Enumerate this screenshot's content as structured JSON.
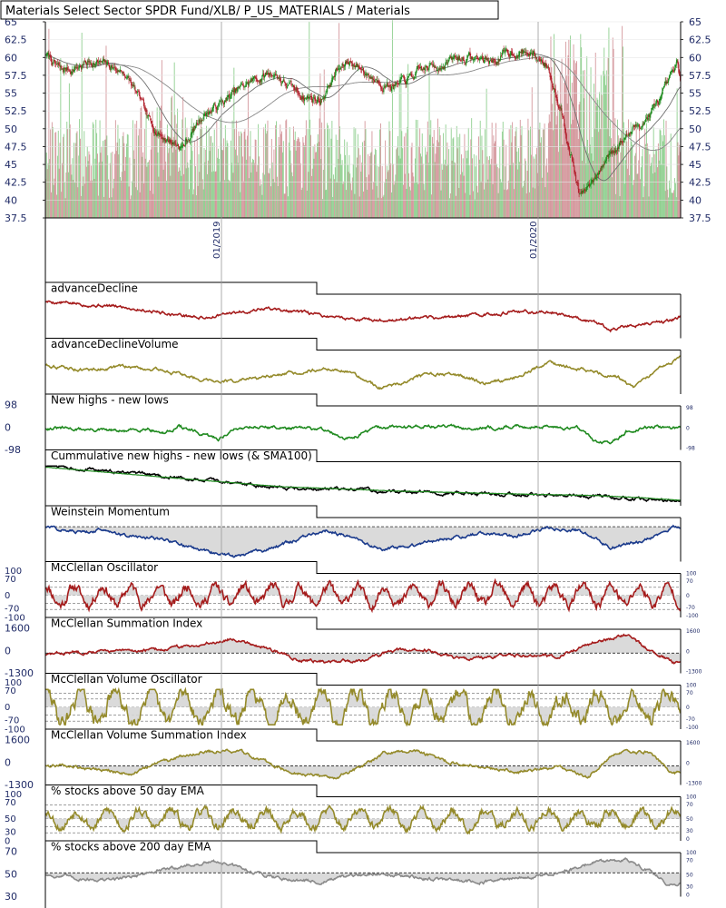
{
  "title": "Materials Select Sector SPDR Fund/XLB/ P_US_MATERIALS / Materials",
  "colors": {
    "up": "#1b8a1b",
    "down": "#b01e2a",
    "up_volume": "#8fcf8f",
    "down_volume": "#d4979c",
    "red_line": "#a51c1c",
    "olive_line": "#948a2a",
    "green_line": "#1f8a1f",
    "navy_line": "#1a3a8c",
    "gray_line": "#8a8a8a",
    "fill": "#d6d6d6",
    "frame": "#000000",
    "axis_text": "#1f2a66"
  },
  "chart_data": [
    {
      "id": "price",
      "type": "candlestick",
      "title": "Materials Select Sector SPDR Fund/XLB/ P_US_MATERIALS / Materials",
      "ylim": [
        37.5,
        65
      ],
      "yticks": [
        37.5,
        40,
        42.5,
        45,
        47.5,
        50,
        52.5,
        55,
        57.5,
        60,
        62.5,
        65
      ],
      "ytick_labels": [
        "37.5",
        "40",
        "42.5",
        "45",
        "47.5",
        "50",
        "52.5",
        "55",
        "57.5",
        "60",
        "62.5",
        "65"
      ],
      "x_date_labels": [
        "01/2019",
        "01/2020"
      ],
      "approx_close_anchors": [
        [
          0,
          60.5
        ],
        [
          20,
          58
        ],
        [
          60,
          59.5
        ],
        [
          100,
          58
        ],
        [
          120,
          54
        ],
        [
          130,
          51
        ],
        [
          150,
          49
        ],
        [
          175,
          47.5
        ],
        [
          200,
          52
        ],
        [
          230,
          54
        ],
        [
          260,
          56.5
        ],
        [
          290,
          58
        ],
        [
          320,
          55
        ],
        [
          350,
          54
        ],
        [
          370,
          58
        ],
        [
          390,
          59.5
        ],
        [
          420,
          57
        ],
        [
          450,
          56
        ],
        [
          480,
          58
        ],
        [
          510,
          59.5
        ],
        [
          540,
          60
        ],
        [
          570,
          59.5
        ],
        [
          600,
          61
        ],
        [
          620,
          60.5
        ],
        [
          640,
          59
        ],
        [
          660,
          52
        ],
        [
          680,
          41
        ],
        [
          700,
          42.5
        ],
        [
          720,
          47
        ],
        [
          745,
          49.5
        ],
        [
          770,
          52
        ],
        [
          790,
          55
        ],
        [
          805,
          58.5
        ],
        [
          810,
          56
        ]
      ]
    },
    {
      "id": "advance-decline",
      "type": "line",
      "title": "advanceDecline",
      "series": [
        {
          "color": "red_line",
          "anchors": [
            [
              0,
              0.9
            ],
            [
              100,
              0.75
            ],
            [
              200,
              0.45
            ],
            [
              280,
              0.72
            ],
            [
              360,
              0.5
            ],
            [
              420,
              0.38
            ],
            [
              500,
              0.45
            ],
            [
              600,
              0.62
            ],
            [
              650,
              0.6
            ],
            [
              700,
              0.35
            ],
            [
              720,
              0.15
            ],
            [
              760,
              0.3
            ],
            [
              790,
              0.35
            ],
            [
              810,
              0.5
            ]
          ]
        }
      ]
    },
    {
      "id": "advance-decline-volume",
      "type": "line",
      "title": "advanceDeclineVolume",
      "series": [
        {
          "color": "olive_line",
          "anchors": [
            [
              0,
              0.7
            ],
            [
              50,
              0.55
            ],
            [
              100,
              0.65
            ],
            [
              150,
              0.55
            ],
            [
              200,
              0.3
            ],
            [
              240,
              0.25
            ],
            [
              300,
              0.4
            ],
            [
              350,
              0.6
            ],
            [
              380,
              0.55
            ],
            [
              400,
              0.35
            ],
            [
              430,
              0.05
            ],
            [
              480,
              0.4
            ],
            [
              520,
              0.45
            ],
            [
              560,
              0.2
            ],
            [
              600,
              0.35
            ],
            [
              640,
              0.75
            ],
            [
              680,
              0.6
            ],
            [
              730,
              0.35
            ],
            [
              750,
              0.05
            ],
            [
              780,
              0.55
            ],
            [
              810,
              0.9
            ]
          ]
        }
      ]
    },
    {
      "id": "new-highs-lows",
      "type": "line",
      "title": "New highs - new lows",
      "left_labels": [
        "98",
        "0",
        "-98"
      ],
      "right_labels": [
        "98",
        "0",
        "-98"
      ],
      "series": [
        {
          "color": "green_line",
          "anchors": [
            [
              0,
              0.5
            ],
            [
              60,
              0.45
            ],
            [
              100,
              0.4
            ],
            [
              130,
              0.5
            ],
            [
              150,
              0.35
            ],
            [
              170,
              0.55
            ],
            [
              200,
              0.3
            ],
            [
              220,
              0.2
            ],
            [
              240,
              0.45
            ],
            [
              260,
              0.55
            ],
            [
              300,
              0.5
            ],
            [
              360,
              0.45
            ],
            [
              380,
              0.15
            ],
            [
              420,
              0.5
            ],
            [
              480,
              0.55
            ],
            [
              560,
              0.5
            ],
            [
              620,
              0.55
            ],
            [
              680,
              0.5
            ],
            [
              700,
              0.15
            ],
            [
              720,
              0.05
            ],
            [
              740,
              0.4
            ],
            [
              780,
              0.55
            ],
            [
              810,
              0.5
            ]
          ]
        }
      ]
    },
    {
      "id": "cumulative-new-highs-lows",
      "type": "line",
      "title": "Cummulative new highs - new lows (& SMA100)",
      "series": [
        {
          "color": "frame",
          "anchors": [
            [
              0,
              1.0
            ],
            [
              150,
              0.7
            ],
            [
              300,
              0.4
            ],
            [
              450,
              0.28
            ],
            [
              600,
              0.2
            ],
            [
              700,
              0.15
            ],
            [
              760,
              0.08
            ],
            [
              810,
              0.02
            ]
          ]
        },
        {
          "color": "green_line",
          "anchors": [
            [
              0,
              0.95
            ],
            [
              150,
              0.68
            ],
            [
              300,
              0.42
            ],
            [
              450,
              0.3
            ],
            [
              600,
              0.22
            ],
            [
              700,
              0.18
            ],
            [
              760,
              0.12
            ],
            [
              810,
              0.05
            ]
          ]
        }
      ]
    },
    {
      "id": "weinstein-momentum",
      "type": "area",
      "title": "Weinstein Momentum",
      "baseline": 0.85,
      "series": [
        {
          "color": "navy_line",
          "anchors": [
            [
              0,
              0.85
            ],
            [
              40,
              0.7
            ],
            [
              80,
              0.8
            ],
            [
              100,
              0.6
            ],
            [
              150,
              0.5
            ],
            [
              200,
              0.2
            ],
            [
              240,
              0.05
            ],
            [
              280,
              0.2
            ],
            [
              320,
              0.5
            ],
            [
              360,
              0.75
            ],
            [
              390,
              0.55
            ],
            [
              430,
              0.25
            ],
            [
              470,
              0.35
            ],
            [
              520,
              0.55
            ],
            [
              560,
              0.7
            ],
            [
              600,
              0.6
            ],
            [
              640,
              0.8
            ],
            [
              680,
              0.75
            ],
            [
              720,
              0.3
            ],
            [
              760,
              0.45
            ],
            [
              800,
              0.85
            ],
            [
              810,
              0.8
            ]
          ]
        }
      ]
    },
    {
      "id": "mcclellan-oscillator",
      "type": "oscillator",
      "title": "McClellan Oscillator",
      "left_labels": [
        "100",
        "70",
        "0",
        "-70",
        "-100"
      ],
      "right_labels": [
        "100",
        "70",
        "0",
        "-70",
        "-100"
      ],
      "series": [
        {
          "color": "red_line",
          "seed": 11,
          "amp": 0.55,
          "period": 18
        }
      ]
    },
    {
      "id": "mcclellan-summation",
      "type": "area",
      "title": "McClellan Summation Index",
      "left_labels": [
        "1600",
        "0",
        "-1300"
      ],
      "right_labels": [
        "1600",
        "0",
        "-1300"
      ],
      "baseline": 0.45,
      "series": [
        {
          "color": "red_line",
          "anchors": [
            [
              0,
              0.4
            ],
            [
              50,
              0.5
            ],
            [
              100,
              0.5
            ],
            [
              150,
              0.55
            ],
            [
              200,
              0.7
            ],
            [
              240,
              0.85
            ],
            [
              280,
              0.6
            ],
            [
              320,
              0.3
            ],
            [
              360,
              0.2
            ],
            [
              400,
              0.25
            ],
            [
              440,
              0.5
            ],
            [
              480,
              0.55
            ],
            [
              520,
              0.35
            ],
            [
              560,
              0.3
            ],
            [
              600,
              0.4
            ],
            [
              650,
              0.35
            ],
            [
              700,
              0.75
            ],
            [
              740,
              0.95
            ],
            [
              770,
              0.5
            ],
            [
              800,
              0.2
            ],
            [
              810,
              0.15
            ]
          ]
        }
      ]
    },
    {
      "id": "mcclellan-volume-oscillator",
      "type": "oscillator",
      "title": "McClellan Volume Oscillator",
      "left_labels": [
        "100",
        "70",
        "0",
        "-70",
        "-100"
      ],
      "right_labels": [
        "100",
        "70",
        "0",
        "-70",
        "-100"
      ],
      "series": [
        {
          "color": "olive_line",
          "seed": 29,
          "amp": 0.9,
          "period": 22
        }
      ]
    },
    {
      "id": "mcclellan-volume-summation",
      "type": "area",
      "title": "McClellan Volume Summation Index",
      "left_labels": [
        "1600",
        "0",
        "-1300"
      ],
      "right_labels": [
        "1600",
        "0",
        "-1300"
      ],
      "baseline": 0.42,
      "series": [
        {
          "color": "olive_line",
          "anchors": [
            [
              0,
              0.45
            ],
            [
              60,
              0.35
            ],
            [
              110,
              0.2
            ],
            [
              150,
              0.55
            ],
            [
              200,
              0.8
            ],
            [
              240,
              0.85
            ],
            [
              300,
              0.35
            ],
            [
              340,
              0.15
            ],
            [
              370,
              0.1
            ],
            [
              400,
              0.35
            ],
            [
              430,
              0.75
            ],
            [
              470,
              0.85
            ],
            [
              510,
              0.55
            ],
            [
              550,
              0.4
            ],
            [
              600,
              0.25
            ],
            [
              650,
              0.4
            ],
            [
              690,
              0.1
            ],
            [
              730,
              0.8
            ],
            [
              770,
              0.8
            ],
            [
              800,
              0.2
            ],
            [
              810,
              0.25
            ]
          ]
        }
      ]
    },
    {
      "id": "pct-above-50ema",
      "type": "oscillator",
      "title": "% stocks above 50 day EMA",
      "left_labels": [
        "100",
        "70",
        "50",
        "30",
        "0"
      ],
      "right_labels": [
        "100",
        "70",
        "50",
        "30",
        "0"
      ],
      "series": [
        {
          "color": "olive_line",
          "seed": 53,
          "amp": 0.5,
          "period": 20
        }
      ]
    },
    {
      "id": "pct-above-200ema",
      "type": "area",
      "title": "% stocks above 200 day EMA",
      "left_labels": [
        "70",
        "50",
        "30"
      ],
      "right_labels": [
        "100",
        "70",
        "50",
        "30",
        "0"
      ],
      "baseline": 0.55,
      "series": [
        {
          "color": "gray_line",
          "anchors": [
            [
              0,
              0.5
            ],
            [
              40,
              0.4
            ],
            [
              80,
              0.35
            ],
            [
              120,
              0.5
            ],
            [
              180,
              0.75
            ],
            [
              220,
              0.85
            ],
            [
              260,
              0.6
            ],
            [
              300,
              0.4
            ],
            [
              350,
              0.3
            ],
            [
              390,
              0.45
            ],
            [
              430,
              0.55
            ],
            [
              480,
              0.4
            ],
            [
              520,
              0.35
            ],
            [
              560,
              0.3
            ],
            [
              600,
              0.4
            ],
            [
              650,
              0.5
            ],
            [
              700,
              0.85
            ],
            [
              740,
              0.9
            ],
            [
              770,
              0.6
            ],
            [
              790,
              0.3
            ],
            [
              800,
              0.2
            ],
            [
              810,
              0.3
            ]
          ]
        }
      ]
    }
  ]
}
